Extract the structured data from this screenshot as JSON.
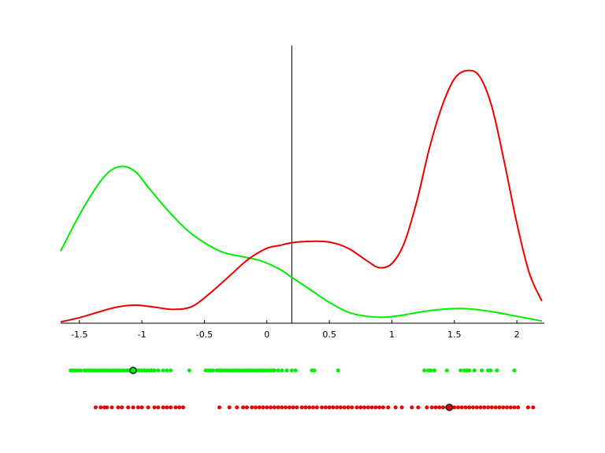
{
  "chart_data": {
    "type": "line",
    "title": "",
    "xlabel": "",
    "ylabel": "",
    "xlim": [
      -1.65,
      2.22
    ],
    "ylim": [
      0,
      1.0
    ],
    "x_ticks": [
      -1.5,
      -1,
      -0.5,
      0,
      0.5,
      1,
      1.5,
      2
    ],
    "x_tick_labels": [
      "-1.5",
      "-1",
      "-0.5",
      "0",
      "0.5",
      "1",
      "1.5",
      "2"
    ],
    "threshold_x": 0.2,
    "grid": false,
    "legend": "none",
    "series": [
      {
        "color": "#00ee00",
        "x": [
          -1.65,
          -1.5,
          -1.35,
          -1.25,
          -1.15,
          -1.05,
          -0.95,
          -0.8,
          -0.65,
          -0.5,
          -0.35,
          -0.2,
          -0.05,
          0.1,
          0.2,
          0.35,
          0.5,
          0.65,
          0.8,
          0.95,
          1.1,
          1.25,
          1.4,
          1.55,
          1.7,
          1.85,
          2.0,
          2.2
        ],
        "y": [
          0.26,
          0.39,
          0.5,
          0.55,
          0.565,
          0.545,
          0.49,
          0.41,
          0.34,
          0.29,
          0.255,
          0.24,
          0.225,
          0.195,
          0.165,
          0.12,
          0.075,
          0.04,
          0.025,
          0.022,
          0.03,
          0.042,
          0.05,
          0.053,
          0.048,
          0.038,
          0.025,
          0.008
        ]
      },
      {
        "color": "#ee0000",
        "x": [
          -1.65,
          -1.5,
          -1.35,
          -1.2,
          -1.05,
          -0.9,
          -0.75,
          -0.6,
          -0.45,
          -0.3,
          -0.15,
          0.0,
          0.1,
          0.2,
          0.35,
          0.5,
          0.65,
          0.8,
          0.9,
          1.0,
          1.1,
          1.2,
          1.3,
          1.4,
          1.5,
          1.6,
          1.7,
          1.8,
          1.9,
          2.0,
          2.1,
          2.2
        ],
        "y": [
          0.005,
          0.02,
          0.04,
          0.058,
          0.065,
          0.058,
          0.05,
          0.06,
          0.11,
          0.17,
          0.23,
          0.27,
          0.28,
          0.29,
          0.295,
          0.292,
          0.27,
          0.225,
          0.2,
          0.215,
          0.29,
          0.44,
          0.63,
          0.78,
          0.88,
          0.91,
          0.89,
          0.78,
          0.58,
          0.36,
          0.18,
          0.08
        ]
      }
    ],
    "rugs": [
      {
        "color": "#00ee00",
        "row": 1,
        "x": [
          -1.57,
          -1.55,
          -1.53,
          -1.51,
          -1.49,
          -1.46,
          -1.44,
          -1.42,
          -1.4,
          -1.38,
          -1.36,
          -1.34,
          -1.32,
          -1.3,
          -1.28,
          -1.26,
          -1.24,
          -1.22,
          -1.2,
          -1.18,
          -1.16,
          -1.14,
          -1.12,
          -1.1,
          -1.08,
          -1.06,
          -1.04,
          -1.02,
          -1.0,
          -0.98,
          -0.96,
          -0.94,
          -0.92,
          -0.9,
          -0.87,
          -0.83,
          -0.8,
          -0.77,
          -0.62,
          -0.49,
          -0.47,
          -0.45,
          -0.43,
          -0.4,
          -0.38,
          -0.36,
          -0.34,
          -0.32,
          -0.3,
          -0.28,
          -0.26,
          -0.24,
          -0.22,
          -0.2,
          -0.18,
          -0.16,
          -0.14,
          -0.12,
          -0.1,
          -0.08,
          -0.06,
          -0.04,
          -0.02,
          0.0,
          0.02,
          0.04,
          0.06,
          0.09,
          0.12,
          0.16,
          0.2,
          0.23,
          0.36,
          0.38,
          0.57,
          1.26,
          1.29,
          1.31,
          1.34,
          1.44,
          1.55,
          1.58,
          1.6,
          1.62,
          1.66,
          1.72,
          1.77,
          1.79,
          1.84,
          1.98
        ],
        "highlight_x": -1.07
      },
      {
        "color": "#ee0000",
        "row": 2,
        "x": [
          -1.37,
          -1.33,
          -1.3,
          -1.28,
          -1.24,
          -1.19,
          -1.16,
          -1.11,
          -1.07,
          -1.03,
          -1.0,
          -0.95,
          -0.9,
          -0.87,
          -0.83,
          -0.8,
          -0.77,
          -0.73,
          -0.7,
          -0.67,
          -0.38,
          -0.3,
          -0.24,
          -0.19,
          -0.16,
          -0.12,
          -0.09,
          -0.06,
          -0.03,
          0.0,
          0.03,
          0.06,
          0.09,
          0.12,
          0.15,
          0.18,
          0.21,
          0.24,
          0.28,
          0.31,
          0.34,
          0.37,
          0.4,
          0.44,
          0.47,
          0.5,
          0.53,
          0.56,
          0.59,
          0.62,
          0.65,
          0.68,
          0.72,
          0.75,
          0.78,
          0.81,
          0.84,
          0.87,
          0.9,
          0.93,
          0.97,
          1.03,
          1.08,
          1.16,
          1.21,
          1.28,
          1.32,
          1.35,
          1.38,
          1.41,
          1.44,
          1.47,
          1.5,
          1.53,
          1.56,
          1.59,
          1.62,
          1.65,
          1.68,
          1.71,
          1.74,
          1.77,
          1.8,
          1.83,
          1.86,
          1.89,
          1.92,
          1.95,
          1.98,
          2.01,
          2.09,
          2.13
        ],
        "highlight_x": 1.46
      }
    ]
  }
}
